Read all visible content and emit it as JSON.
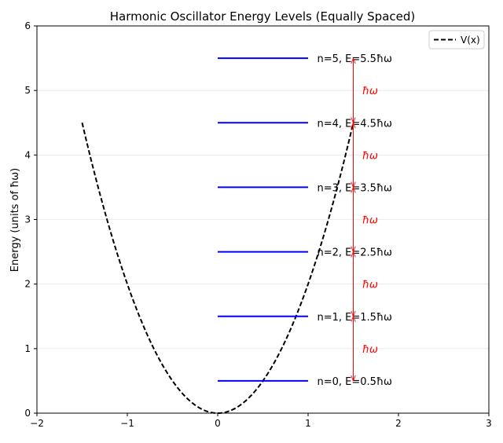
{
  "chart_data": {
    "type": "line",
    "title": "Harmonic Oscillator Energy Levels (Equally Spaced)",
    "xlabel": "",
    "ylabel": "Energy (units of ħω)",
    "xlim": [
      -2,
      3
    ],
    "ylim": [
      0,
      6
    ],
    "xticks": [
      "−2",
      "−1",
      "0",
      "1",
      "2",
      "3"
    ],
    "yticks": [
      "0",
      "1",
      "2",
      "3",
      "4",
      "5",
      "6"
    ],
    "grid": "horizontal, light",
    "legend": {
      "placement": "top-right",
      "entries": [
        "V(x)"
      ]
    },
    "potential": {
      "name": "V(x)",
      "formula": "V = 2x²",
      "x_range": [
        -1.5,
        1.5
      ],
      "style": "dashed",
      "color": "#000000"
    },
    "levels": [
      {
        "n": 0,
        "E": 0.5,
        "label": "n=0, E=0.5ħω"
      },
      {
        "n": 1,
        "E": 1.5,
        "label": "n=1, E=1.5ħω"
      },
      {
        "n": 2,
        "E": 2.5,
        "label": "n=2, E=2.5ħω"
      },
      {
        "n": 3,
        "E": 3.5,
        "label": "n=3, E=3.5ħω"
      },
      {
        "n": 4,
        "E": 4.5,
        "label": "n=4, E=4.5ħω"
      },
      {
        "n": 5,
        "E": 5.5,
        "label": "n=5, E=5.5ħω"
      }
    ],
    "level_x_range": [
      0,
      1
    ],
    "level_color": "#0000ff",
    "spacing_arrows": {
      "x": 1.5,
      "label": "ħω",
      "color": "#ff0000"
    }
  }
}
